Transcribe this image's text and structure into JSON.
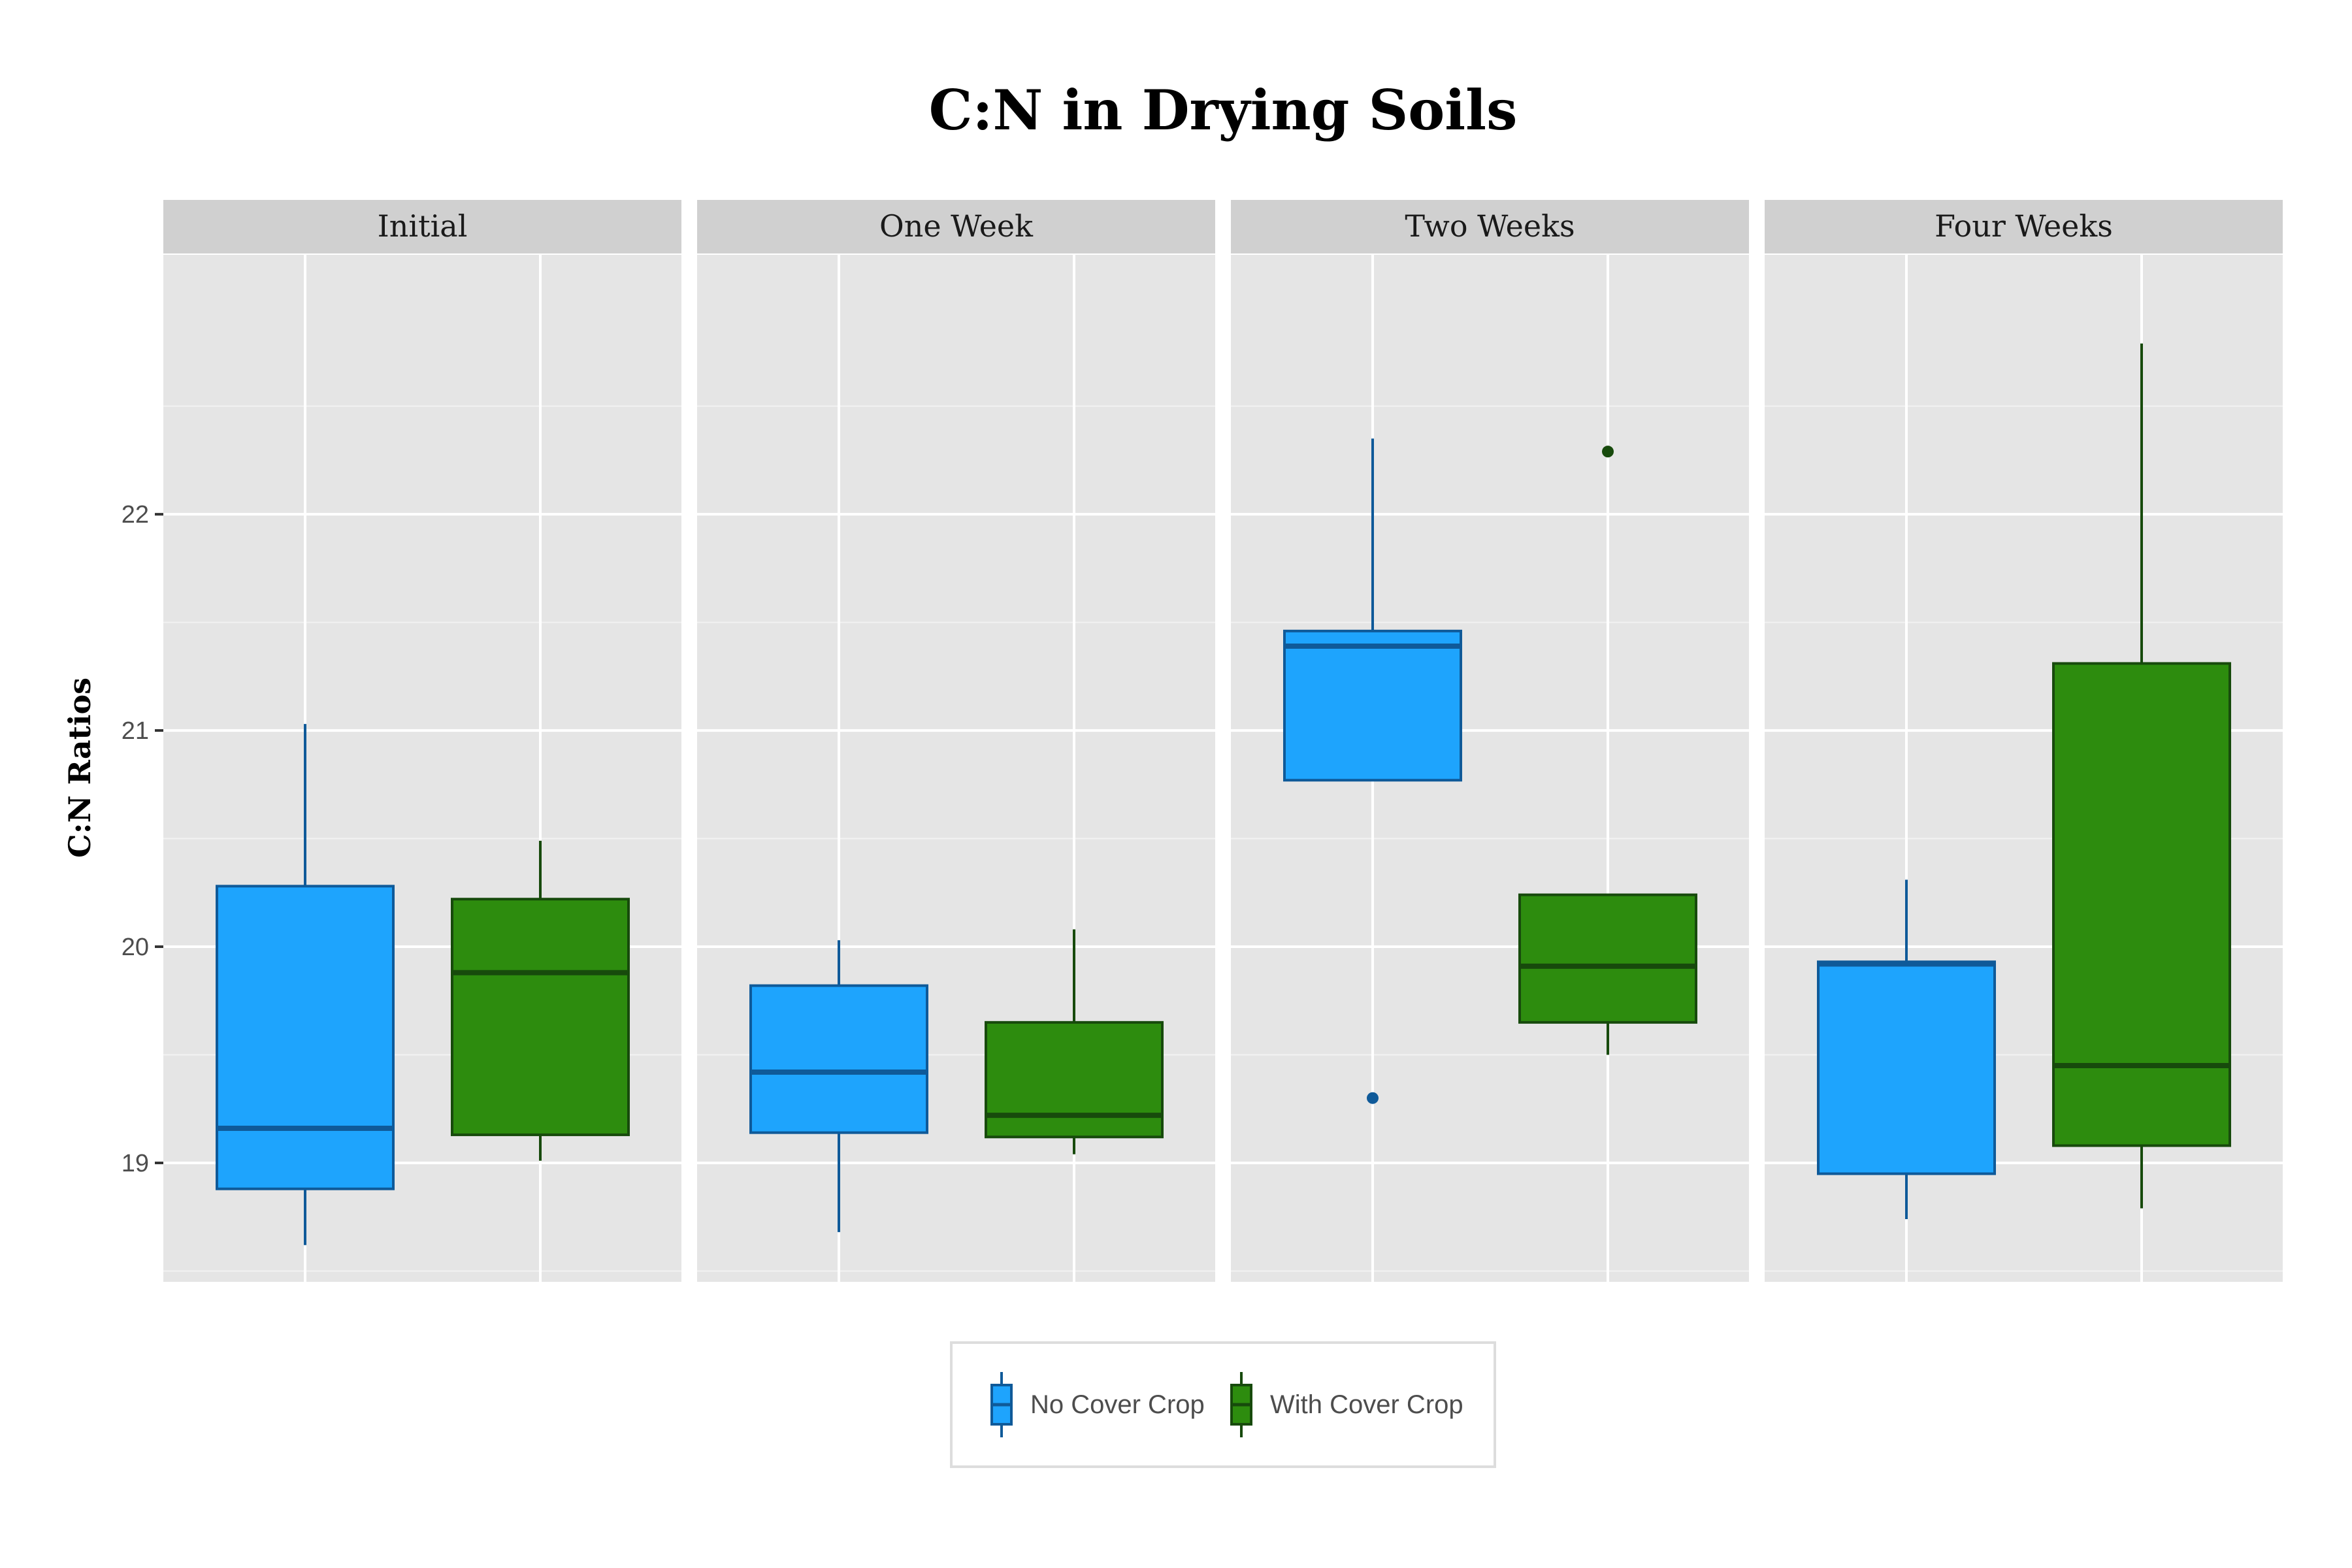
{
  "chart_data": {
    "type": "boxplot",
    "title": "C:N in Drying Soils",
    "xlabel": "",
    "ylabel": "C:N Ratios",
    "ylim": [
      18.45,
      23.2
    ],
    "yticks": [
      19,
      20,
      21,
      22
    ],
    "grid": true,
    "legend_position": "bottom",
    "facets": [
      "Initial",
      "One Week",
      "Two Weeks",
      "Four Weeks"
    ],
    "series": [
      {
        "name": "No Cover Crop",
        "fill": "#1ea4fd",
        "line": "#0f5a99",
        "boxes": [
          {
            "facet": "Initial",
            "min": 18.62,
            "q1": 18.88,
            "median": 19.16,
            "q3": 20.28,
            "max": 21.03,
            "outliers": []
          },
          {
            "facet": "One Week",
            "min": 18.68,
            "q1": 19.14,
            "median": 19.42,
            "q3": 19.82,
            "max": 20.03,
            "outliers": []
          },
          {
            "facet": "Two Weeks",
            "min": 20.77,
            "q1": 20.77,
            "median": 21.39,
            "q3": 21.46,
            "max": 22.35,
            "outliers": [
              19.3
            ]
          },
          {
            "facet": "Four Weeks",
            "min": 18.74,
            "q1": 18.95,
            "median": 19.92,
            "q3": 19.93,
            "max": 20.31,
            "outliers": []
          }
        ]
      },
      {
        "name": "With Cover Crop",
        "fill": "#2d8c0e",
        "line": "#174a0c",
        "boxes": [
          {
            "facet": "Initial",
            "min": 19.01,
            "q1": 19.13,
            "median": 19.88,
            "q3": 20.22,
            "max": 20.49,
            "outliers": []
          },
          {
            "facet": "One Week",
            "min": 19.04,
            "q1": 19.12,
            "median": 19.22,
            "q3": 19.65,
            "max": 20.08,
            "outliers": []
          },
          {
            "facet": "Two Weeks",
            "min": 19.5,
            "q1": 19.65,
            "median": 19.91,
            "q3": 20.24,
            "max": 20.24,
            "outliers": [
              22.29
            ]
          },
          {
            "facet": "Four Weeks",
            "min": 18.79,
            "q1": 19.08,
            "median": 19.45,
            "q3": 21.31,
            "max": 22.79,
            "outliers": []
          }
        ]
      }
    ]
  }
}
